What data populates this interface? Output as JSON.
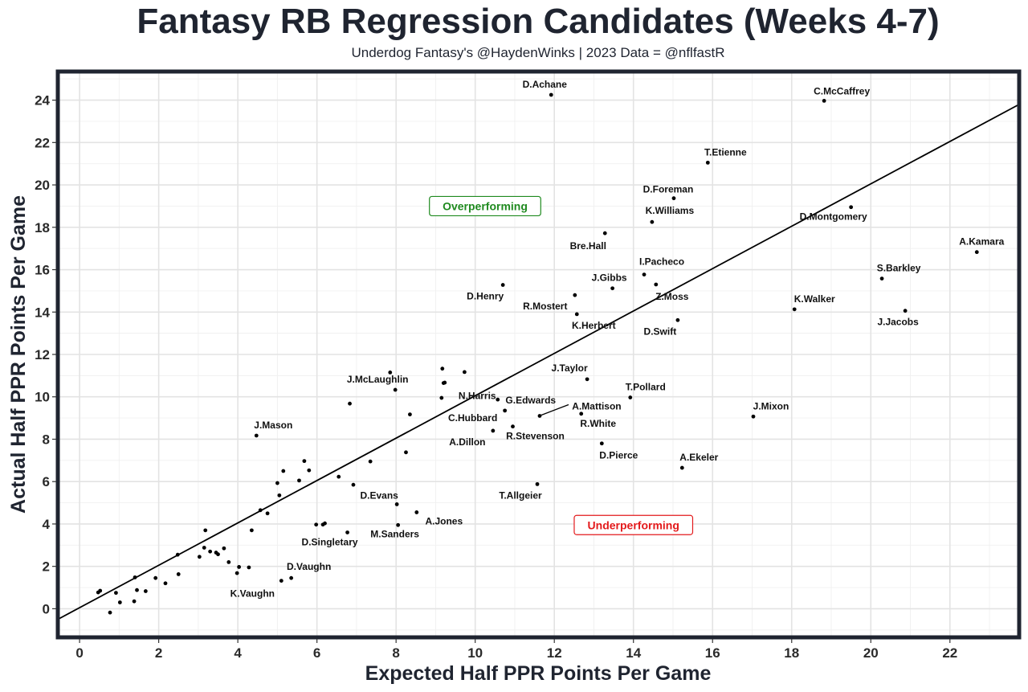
{
  "chart_data": {
    "type": "scatter",
    "title": "Fantasy RB Regression Candidates (Weeks 4-7)",
    "subtitle": "Underdog Fantasy's @HaydenWinks | 2023 Data = @nflfastR",
    "xlabel": "Expected Half PPR Points Per Game",
    "ylabel": "Actual Half PPR Points Per Game",
    "xlim": [
      -0.55,
      23.75
    ],
    "ylim": [
      -1.35,
      25.35
    ],
    "xticks": [
      0,
      2,
      4,
      6,
      8,
      10,
      12,
      14,
      16,
      18,
      20,
      22
    ],
    "yticks": [
      0,
      2,
      4,
      6,
      8,
      10,
      12,
      14,
      16,
      18,
      20,
      22,
      24
    ],
    "trendline": {
      "slope": 1.0,
      "intercept": 0.05
    },
    "annotations": [
      {
        "text": "Overperforming",
        "x": 10.25,
        "y": 19.0,
        "color": "#1f8a1f"
      },
      {
        "text": "Underperforming",
        "x": 14.0,
        "y": 3.95,
        "color": "#e31a1c"
      }
    ],
    "labeled_points": [
      {
        "name": "D.Achane",
        "x": 11.92,
        "y": 24.25
      },
      {
        "name": "C.McCaffrey",
        "x": 18.82,
        "y": 23.97
      },
      {
        "name": "T.Etienne",
        "x": 15.88,
        "y": 21.05
      },
      {
        "name": "D.Foreman",
        "x": 15.02,
        "y": 19.37
      },
      {
        "name": "D.Montgomery",
        "x": 19.5,
        "y": 18.95
      },
      {
        "name": "K.Williams",
        "x": 14.47,
        "y": 18.25
      },
      {
        "name": "Bre.Hall",
        "x": 13.28,
        "y": 17.72
      },
      {
        "name": "A.Kamara",
        "x": 22.68,
        "y": 16.83
      },
      {
        "name": "I.Pacheco",
        "x": 14.27,
        "y": 15.77
      },
      {
        "name": "S.Barkley",
        "x": 20.28,
        "y": 15.58
      },
      {
        "name": "J.Gibbs",
        "x": 13.47,
        "y": 15.12
      },
      {
        "name": "Z.Moss",
        "x": 14.57,
        "y": 15.3
      },
      {
        "name": "D.Henry",
        "x": 10.7,
        "y": 15.28
      },
      {
        "name": "R.Mostert",
        "x": 12.52,
        "y": 14.8
      },
      {
        "name": "K.Walker",
        "x": 18.07,
        "y": 14.13
      },
      {
        "name": "J.Jacobs",
        "x": 20.87,
        "y": 14.06
      },
      {
        "name": "K.Herbert",
        "x": 12.57,
        "y": 13.9
      },
      {
        "name": "D.Swift",
        "x": 15.12,
        "y": 13.62
      },
      {
        "name": "J.McLaughlin",
        "x": 7.98,
        "y": 10.33
      },
      {
        "name": "N.Harris",
        "x": 9.2,
        "y": 10.65
      },
      {
        "name": "J.Taylor",
        "x": 12.83,
        "y": 10.83
      },
      {
        "name": "T.Pollard",
        "x": 13.92,
        "y": 9.97
      },
      {
        "name": "G.Edwards",
        "x": 10.57,
        "y": 9.87
      },
      {
        "name": "A.Mattison",
        "x": 11.63,
        "y": 9.1
      },
      {
        "name": "C.Hubbard",
        "x": 10.75,
        "y": 9.35
      },
      {
        "name": "R.White",
        "x": 12.68,
        "y": 9.2
      },
      {
        "name": "R.Stevenson",
        "x": 10.95,
        "y": 8.6
      },
      {
        "name": "A.Dillon",
        "x": 10.45,
        "y": 8.4
      },
      {
        "name": "J.Mason",
        "x": 4.47,
        "y": 8.17
      },
      {
        "name": "J.Mixon",
        "x": 17.03,
        "y": 9.07
      },
      {
        "name": "D.Pierce",
        "x": 13.2,
        "y": 7.8
      },
      {
        "name": "A.Ekeler",
        "x": 15.23,
        "y": 6.65
      },
      {
        "name": "T.Allgeier",
        "x": 11.57,
        "y": 5.88
      },
      {
        "name": "D.Evans",
        "x": 8.02,
        "y": 4.93
      },
      {
        "name": "A.Jones",
        "x": 8.52,
        "y": 4.55
      },
      {
        "name": "M.Sanders",
        "x": 8.05,
        "y": 3.95
      },
      {
        "name": "D.Singletary",
        "x": 6.77,
        "y": 3.6
      },
      {
        "name": "D.Vaughn",
        "x": 5.35,
        "y": 1.45
      },
      {
        "name": "K.Vaughn",
        "x": 5.1,
        "y": 1.32
      }
    ],
    "other_points": [
      [
        0.47,
        0.77
      ],
      [
        0.52,
        0.85
      ],
      [
        0.92,
        0.75
      ],
      [
        1.02,
        0.3
      ],
      [
        0.77,
        -0.18
      ],
      [
        1.4,
        1.48
      ],
      [
        1.45,
        0.88
      ],
      [
        1.38,
        0.35
      ],
      [
        1.67,
        0.83
      ],
      [
        1.92,
        1.45
      ],
      [
        2.17,
        1.2
      ],
      [
        2.48,
        2.55
      ],
      [
        2.5,
        1.63
      ],
      [
        3.03,
        2.45
      ],
      [
        3.15,
        2.88
      ],
      [
        3.18,
        3.7
      ],
      [
        3.3,
        2.7
      ],
      [
        3.45,
        2.65
      ],
      [
        3.5,
        2.57
      ],
      [
        3.65,
        2.85
      ],
      [
        3.77,
        2.2
      ],
      [
        3.98,
        1.68
      ],
      [
        4.03,
        1.97
      ],
      [
        4.28,
        1.95
      ],
      [
        4.35,
        3.7
      ],
      [
        4.57,
        4.65
      ],
      [
        4.75,
        4.5
      ],
      [
        5.0,
        5.93
      ],
      [
        5.05,
        5.35
      ],
      [
        5.15,
        6.5
      ],
      [
        5.55,
        6.05
      ],
      [
        5.68,
        6.97
      ],
      [
        5.8,
        6.53
      ],
      [
        5.98,
        3.97
      ],
      [
        6.15,
        3.97
      ],
      [
        6.2,
        4.03
      ],
      [
        6.55,
        6.23
      ],
      [
        6.83,
        9.68
      ],
      [
        6.92,
        5.85
      ],
      [
        7.35,
        6.95
      ],
      [
        7.85,
        11.15
      ],
      [
        8.25,
        7.38
      ],
      [
        8.35,
        9.17
      ],
      [
        9.17,
        11.33
      ],
      [
        9.15,
        9.95
      ],
      [
        9.23,
        10.67
      ],
      [
        9.73,
        11.17
      ]
    ]
  }
}
